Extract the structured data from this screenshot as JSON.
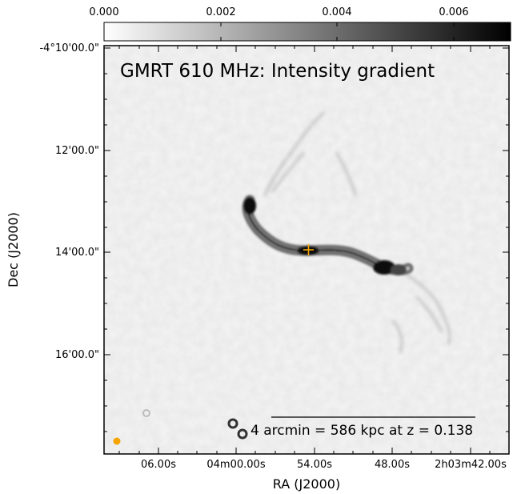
{
  "figure": {
    "title": "GMRT 610 MHz: Intensity gradient",
    "xlabel": "RA (J2000)",
    "ylabel": "Dec (J2000)",
    "ra_ticks": [
      "06.00s",
      "04m00.00s",
      "54.00s",
      "48.00s",
      "2h03m42.00s"
    ],
    "dec_ticks": [
      "-4°10'00.0\"",
      "12'00.0\"",
      "14'00.0\"",
      "16'00.0\""
    ],
    "colorbar": {
      "ticks": [
        "0.000",
        "0.002",
        "0.004",
        "0.006"
      ],
      "colormap": "grayscale (white to black)"
    },
    "scalebar_label": "4 arcmin = 586 kpc at z = 0.138",
    "colors": {
      "marker": "#f5a400",
      "beam": "#f5a400",
      "frame": "#000000"
    }
  }
}
